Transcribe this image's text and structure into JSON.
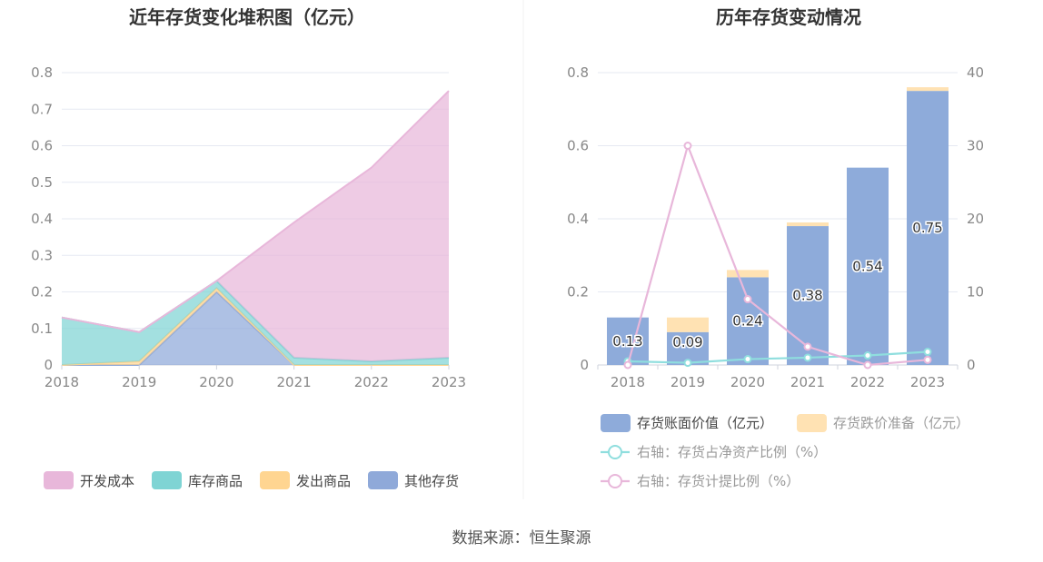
{
  "source_text": "数据来源：恒生聚源",
  "chart_data": [
    {
      "type": "area",
      "stacked": true,
      "title": "近年存货变化堆积图（亿元）",
      "x": [
        "2018",
        "2019",
        "2020",
        "2021",
        "2022",
        "2023"
      ],
      "ylim": [
        0,
        0.8
      ],
      "yticks": [
        "0",
        "0.1",
        "0.2",
        "0.3",
        "0.4",
        "0.5",
        "0.6",
        "0.7",
        "0.8"
      ],
      "grid": true,
      "legend_position": "bottom",
      "series": [
        {
          "name": "其他存货",
          "color": "#8fa9d9",
          "values": [
            0,
            0,
            0.2,
            0,
            0,
            0
          ]
        },
        {
          "name": "发出商品",
          "color": "#ffd591",
          "values": [
            0,
            0.01,
            0.01,
            0,
            0,
            0
          ]
        },
        {
          "name": "库存商品",
          "color": "#7fd4d4",
          "values": [
            0.13,
            0.08,
            0.02,
            0.02,
            0.01,
            0.02
          ]
        },
        {
          "name": "开发成本",
          "color": "#e8b7da",
          "values": [
            0,
            0,
            0,
            0.37,
            0.53,
            0.73
          ]
        }
      ],
      "legend_order": [
        "开发成本",
        "库存商品",
        "发出商品",
        "其他存货"
      ]
    },
    {
      "type": "bar",
      "title": "历年存货变动情况",
      "x": [
        "2018",
        "2019",
        "2020",
        "2021",
        "2022",
        "2023"
      ],
      "ylim": [
        0,
        0.8
      ],
      "yticks": [
        "0",
        "0.2",
        "0.4",
        "0.6",
        "0.8"
      ],
      "y2lim": [
        0,
        40
      ],
      "y2ticks": [
        "0",
        "10",
        "20",
        "30",
        "40"
      ],
      "grid": true,
      "legend_position": "bottom",
      "bars": [
        {
          "name": "存货账面价值（亿元）",
          "color": "#8eabda",
          "values": [
            0.13,
            0.09,
            0.24,
            0.38,
            0.54,
            0.75
          ],
          "labels": [
            "0.13",
            "0.09",
            "0.24",
            "0.38",
            "0.54",
            "0.75"
          ]
        },
        {
          "name": "存货跌价准备（亿元）",
          "color": "#ffe2b3",
          "values": [
            0,
            0.04,
            0.02,
            0.01,
            0,
            0.01
          ]
        }
      ],
      "lines": [
        {
          "name": "右轴：存货占净资产比例（%）",
          "color": "#8fdede",
          "values": [
            0.5,
            0.3,
            0.8,
            1.0,
            1.3,
            1.8
          ]
        },
        {
          "name": "右轴：存货计提比例（%）",
          "color": "#e8b7da",
          "values": [
            0,
            30,
            9,
            2.5,
            0,
            0.7
          ]
        }
      ]
    }
  ]
}
